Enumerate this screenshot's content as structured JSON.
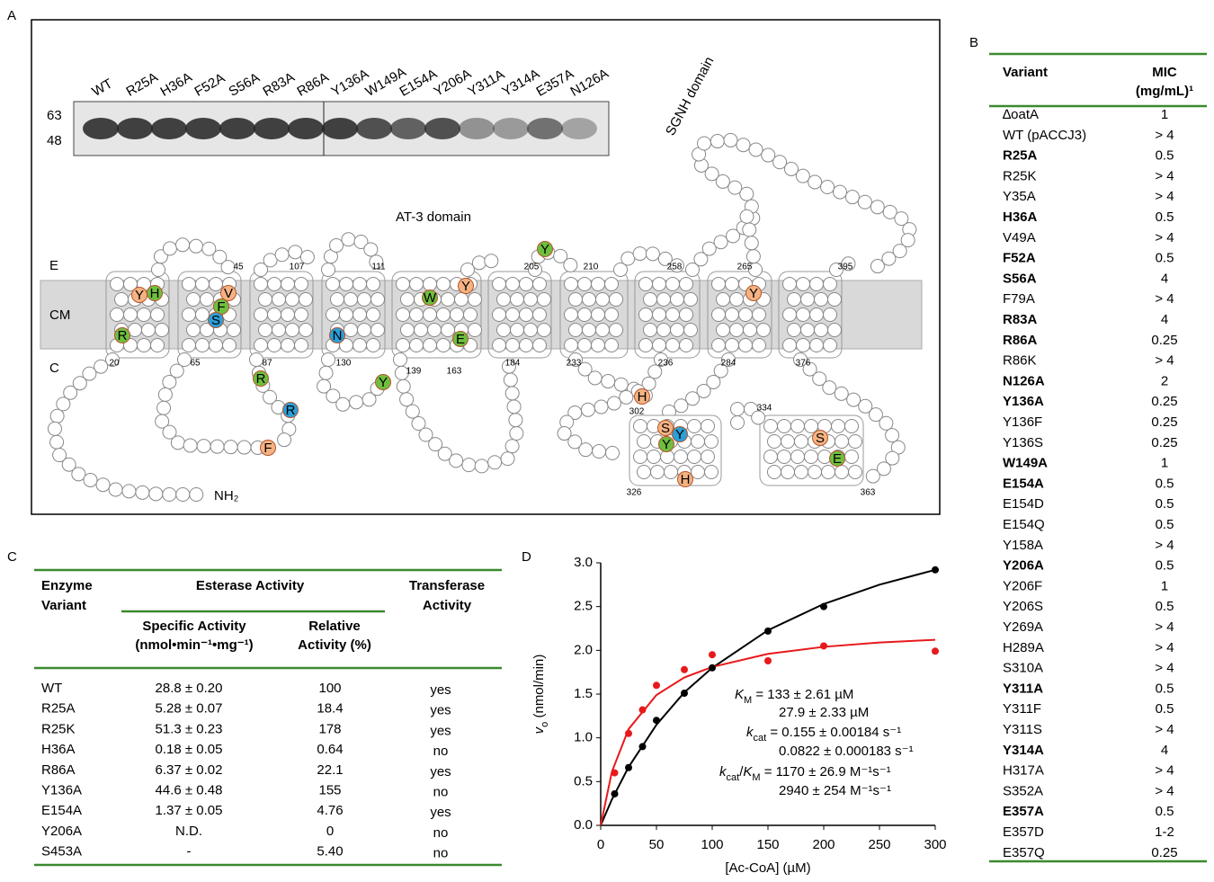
{
  "panel_A": {
    "label": "A",
    "lanes": [
      "WT",
      "R25A",
      "H36A",
      "F52A",
      "S56A",
      "R83A",
      "R86A",
      "Y136A",
      "W149A",
      "E154A",
      "Y206A",
      "Y311A",
      "Y314A",
      "E357A",
      "N126A"
    ],
    "mw": [
      "63",
      "48"
    ],
    "sgnh": "SGNH domain",
    "at3": "AT-3 domain",
    "sides": [
      "E",
      "CM",
      "C"
    ],
    "nterm": "NH₂",
    "residue_numbers": [
      "45",
      "107",
      "111",
      "205",
      "210",
      "258",
      "265",
      "395",
      "20",
      "65",
      "87",
      "130",
      "139",
      "163",
      "184",
      "233",
      "236",
      "284",
      "376",
      "302",
      "334",
      "326",
      "363"
    ],
    "residues": [
      {
        "letter": "Y",
        "color": "#f5b383"
      },
      {
        "letter": "H",
        "color": "#6fbf3f"
      },
      {
        "letter": "V",
        "color": "#f5b383"
      },
      {
        "letter": "F",
        "color": "#6fbf3f"
      },
      {
        "letter": "S",
        "color": "#2a9fd8"
      },
      {
        "letter": "R",
        "color": "#6fbf3f"
      },
      {
        "letter": "N",
        "color": "#2a9fd8"
      },
      {
        "letter": "W",
        "color": "#6fbf3f"
      },
      {
        "letter": "Y",
        "color": "#f5b383"
      },
      {
        "letter": "E",
        "color": "#6fbf3f"
      },
      {
        "letter": "Y",
        "color": "#6fbf3f"
      },
      {
        "letter": "Y",
        "color": "#f5b383"
      },
      {
        "letter": "R",
        "color": "#6fbf3f"
      },
      {
        "letter": "Y",
        "color": "#6fbf3f"
      },
      {
        "letter": "R",
        "color": "#2a9fd8"
      },
      {
        "letter": "F",
        "color": "#f5b383"
      },
      {
        "letter": "H",
        "color": "#f5b383"
      },
      {
        "letter": "S",
        "color": "#f5b383"
      },
      {
        "letter": "Y",
        "color": "#2a9fd8"
      },
      {
        "letter": "Y",
        "color": "#6fbf3f"
      },
      {
        "letter": "H",
        "color": "#f5b383"
      },
      {
        "letter": "S",
        "color": "#f5b383"
      },
      {
        "letter": "E",
        "color": "#6fbf3f"
      }
    ]
  },
  "panel_B": {
    "label": "B",
    "header": [
      "Variant",
      "MIC",
      "(mg/mL)¹"
    ],
    "rule_color": "#3a8a2e",
    "rows": [
      {
        "variant": "∆oatA",
        "mic": "1"
      },
      {
        "variant": "WT (pACCJ3)",
        "mic": "> 4"
      },
      {
        "variant": "R25A",
        "mic": "0.5",
        "bold": true
      },
      {
        "variant": "R25K",
        "mic": "> 4"
      },
      {
        "variant": "Y35A",
        "mic": "> 4"
      },
      {
        "variant": "H36A",
        "mic": "0.5",
        "bold": true
      },
      {
        "variant": "V49A",
        "mic": "> 4"
      },
      {
        "variant": "F52A",
        "mic": "0.5",
        "bold": true
      },
      {
        "variant": "S56A",
        "mic": "4",
        "bold": true
      },
      {
        "variant": "F79A",
        "mic": "> 4"
      },
      {
        "variant": "R83A",
        "mic": "4",
        "bold": true
      },
      {
        "variant": "R86A",
        "mic": "0.25",
        "bold": true
      },
      {
        "variant": "R86K",
        "mic": "> 4"
      },
      {
        "variant": "N126A",
        "mic": "2",
        "bold": true
      },
      {
        "variant": "Y136A",
        "mic": "0.25",
        "bold": true
      },
      {
        "variant": "Y136F",
        "mic": "0.25"
      },
      {
        "variant": "Y136S",
        "mic": "0.25"
      },
      {
        "variant": "W149A",
        "mic": "1",
        "bold": true
      },
      {
        "variant": "E154A",
        "mic": "0.5",
        "bold": true
      },
      {
        "variant": "E154D",
        "mic": "0.5"
      },
      {
        "variant": "E154Q",
        "mic": "0.5"
      },
      {
        "variant": "Y158A",
        "mic": "> 4"
      },
      {
        "variant": "Y206A",
        "mic": "0.5",
        "bold": true
      },
      {
        "variant": "Y206F",
        "mic": "1"
      },
      {
        "variant": "Y206S",
        "mic": "0.5"
      },
      {
        "variant": "Y269A",
        "mic": "> 4"
      },
      {
        "variant": "H289A",
        "mic": "> 4"
      },
      {
        "variant": "S310A",
        "mic": "> 4"
      },
      {
        "variant": "Y311A",
        "mic": "0.5",
        "bold": true
      },
      {
        "variant": "Y311F",
        "mic": "0.5"
      },
      {
        "variant": "Y311S",
        "mic": "> 4"
      },
      {
        "variant": "Y314A",
        "mic": "4",
        "bold": true
      },
      {
        "variant": "H317A",
        "mic": "> 4"
      },
      {
        "variant": "S352A",
        "mic": "> 4"
      },
      {
        "variant": "E357A",
        "mic": "0.5",
        "bold": true
      },
      {
        "variant": "E357D",
        "mic": "1-2"
      },
      {
        "variant": "E357Q",
        "mic": "0.25"
      }
    ]
  },
  "panel_C": {
    "label": "C",
    "header": {
      "enzyme": [
        "Enzyme",
        "Variant"
      ],
      "esterase": "Esterase Activity",
      "transferase": [
        "Transferase",
        "Activity"
      ],
      "specific": [
        "Specific Activity",
        "(nmol•min⁻¹•mg⁻¹)"
      ],
      "relative": [
        "Relative",
        "Activity (%)"
      ]
    },
    "rows": [
      [
        "WT",
        "28.8 ± 0.20",
        "100",
        "yes"
      ],
      [
        "R25A",
        "5.28 ± 0.07",
        "18.4",
        "yes"
      ],
      [
        "R25K",
        "51.3 ± 0.23",
        "178",
        "yes"
      ],
      [
        "H36A",
        "0.18 ± 0.05",
        "0.64",
        "no"
      ],
      [
        "R86A",
        "6.37 ± 0.02",
        "22.1",
        "yes"
      ],
      [
        "Y136A",
        "44.6 ± 0.48",
        "155",
        "no"
      ],
      [
        "E154A",
        "1.37 ± 0.05",
        "4.76",
        "yes"
      ],
      [
        "Y206A",
        "N.D.",
        "0",
        "no"
      ],
      [
        "S453A",
        "-",
        "5.40",
        "no"
      ]
    ]
  },
  "chart_data": {
    "type": "scatter",
    "label": "D",
    "x": [
      12.5,
      25,
      37.5,
      50,
      75,
      100,
      150,
      200,
      300
    ],
    "series": [
      {
        "color": "#000000",
        "values": [
          0.36,
          0.66,
          0.9,
          1.2,
          1.51,
          1.8,
          2.22,
          2.5,
          2.92
        ]
      },
      {
        "color": "#e8191b",
        "values": [
          0.6,
          1.05,
          1.32,
          1.6,
          1.78,
          1.95,
          1.88,
          2.05,
          1.99
        ]
      }
    ],
    "fits": [
      {
        "color": "#000000",
        "x": [
          0,
          10,
          25,
          50,
          75,
          100,
          150,
          200,
          250,
          300
        ],
        "y": [
          0,
          0.295,
          0.666,
          1.15,
          1.52,
          1.8,
          2.23,
          2.53,
          2.75,
          2.92
        ]
      },
      {
        "color": "#e8191b",
        "x": [
          0,
          10,
          25,
          50,
          75,
          100,
          150,
          200,
          250,
          300
        ],
        "y": [
          0,
          0.611,
          1.1,
          1.49,
          1.69,
          1.81,
          1.96,
          2.04,
          2.09,
          2.12
        ]
      }
    ],
    "xlim": [
      0,
      300
    ],
    "xticks": [
      0,
      50,
      100,
      150,
      200,
      250,
      300
    ],
    "ylim": [
      0,
      3
    ],
    "yticks": [
      {
        "value": 0,
        "label": "0.0"
      },
      {
        "value": 0.5,
        "label": "0.5"
      },
      {
        "value": 1,
        "label": "1.0"
      },
      {
        "value": 1.5,
        "label": "1.5"
      },
      {
        "value": 2,
        "label": "2.0"
      },
      {
        "value": 2.5,
        "label": "2.5"
      },
      {
        "value": 3,
        "label": "3.0"
      }
    ],
    "x_label": "[Ac-CoA] (µM)",
    "y_label": [
      {
        "text": "v",
        "style": "italic"
      },
      {
        "text": "o",
        "style": "sub"
      },
      {
        "text": "  (nmol/min)"
      }
    ],
    "annotations": [
      {
        "color": "#000000",
        "parts": [
          {
            "text": "K",
            "style": "italic"
          },
          {
            "text": "M",
            "style": "sub"
          },
          {
            "text": " = 133 ± 2.61 µM"
          }
        ]
      },
      {
        "color": "#e8191b",
        "parts": [
          {
            "text": "27.9 ± 2.33 µM"
          }
        ]
      },
      {
        "color": "#000000",
        "parts": [
          {
            "text": "k",
            "style": "italic"
          },
          {
            "text": "cat",
            "style": "sub"
          },
          {
            "text": " = 0.155 ± 0.00184 s⁻¹"
          }
        ]
      },
      {
        "color": "#e8191b",
        "parts": [
          {
            "text": "0.0822 ± 0.000183 s⁻¹"
          }
        ]
      },
      {
        "color": "#000000",
        "parts": [
          {
            "text": "k",
            "style": "italic"
          },
          {
            "text": "cat",
            "style": "sub"
          },
          {
            "text": "/"
          },
          {
            "text": "K",
            "style": "italic"
          },
          {
            "text": "M",
            "style": "sub"
          },
          {
            "text": " = 1170 ± 26.9 M⁻¹s⁻¹"
          }
        ]
      },
      {
        "color": "#e8191b",
        "parts": [
          {
            "text": "2940 ± 254 M⁻¹s⁻¹"
          }
        ]
      }
    ]
  }
}
